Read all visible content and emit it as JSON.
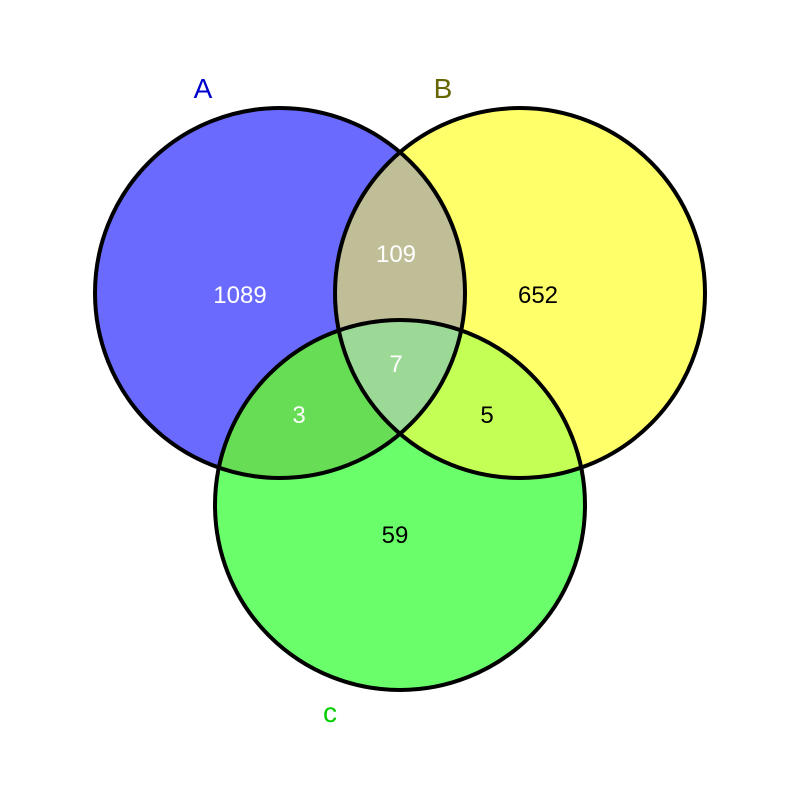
{
  "venn": {
    "sets": [
      {
        "key": "A",
        "label": "A",
        "label_color": "#0000cc",
        "fill": "#6a6aff"
      },
      {
        "key": "B",
        "label": "B",
        "label_color": "#666600",
        "fill": "#ffff6a"
      },
      {
        "key": "C",
        "label": "c",
        "label_color": "#00cc00",
        "fill": "#6aff6a"
      }
    ],
    "regions": [
      {
        "sets": [
          "A"
        ],
        "count": "1089",
        "fill": "#6a6aff",
        "text_color": "#ffffff"
      },
      {
        "sets": [
          "B"
        ],
        "count": "652",
        "fill": "#ffff6a",
        "text_color": "#000000"
      },
      {
        "sets": [
          "C"
        ],
        "count": "59",
        "fill": "#6aff6a",
        "text_color": "#000000"
      },
      {
        "sets": [
          "A",
          "B"
        ],
        "count": "109",
        "fill": "#c0be96",
        "text_color": "#ffffff"
      },
      {
        "sets": [
          "A",
          "C"
        ],
        "count": "3",
        "fill": "#66dd55",
        "text_color": "#ffffff"
      },
      {
        "sets": [
          "B",
          "C"
        ],
        "count": "5",
        "fill": "#c4ff55",
        "text_color": "#000000"
      },
      {
        "sets": [
          "A",
          "B",
          "C"
        ],
        "count": "7",
        "fill": "#9cd896",
        "text_color": "#ffffff"
      }
    ]
  }
}
